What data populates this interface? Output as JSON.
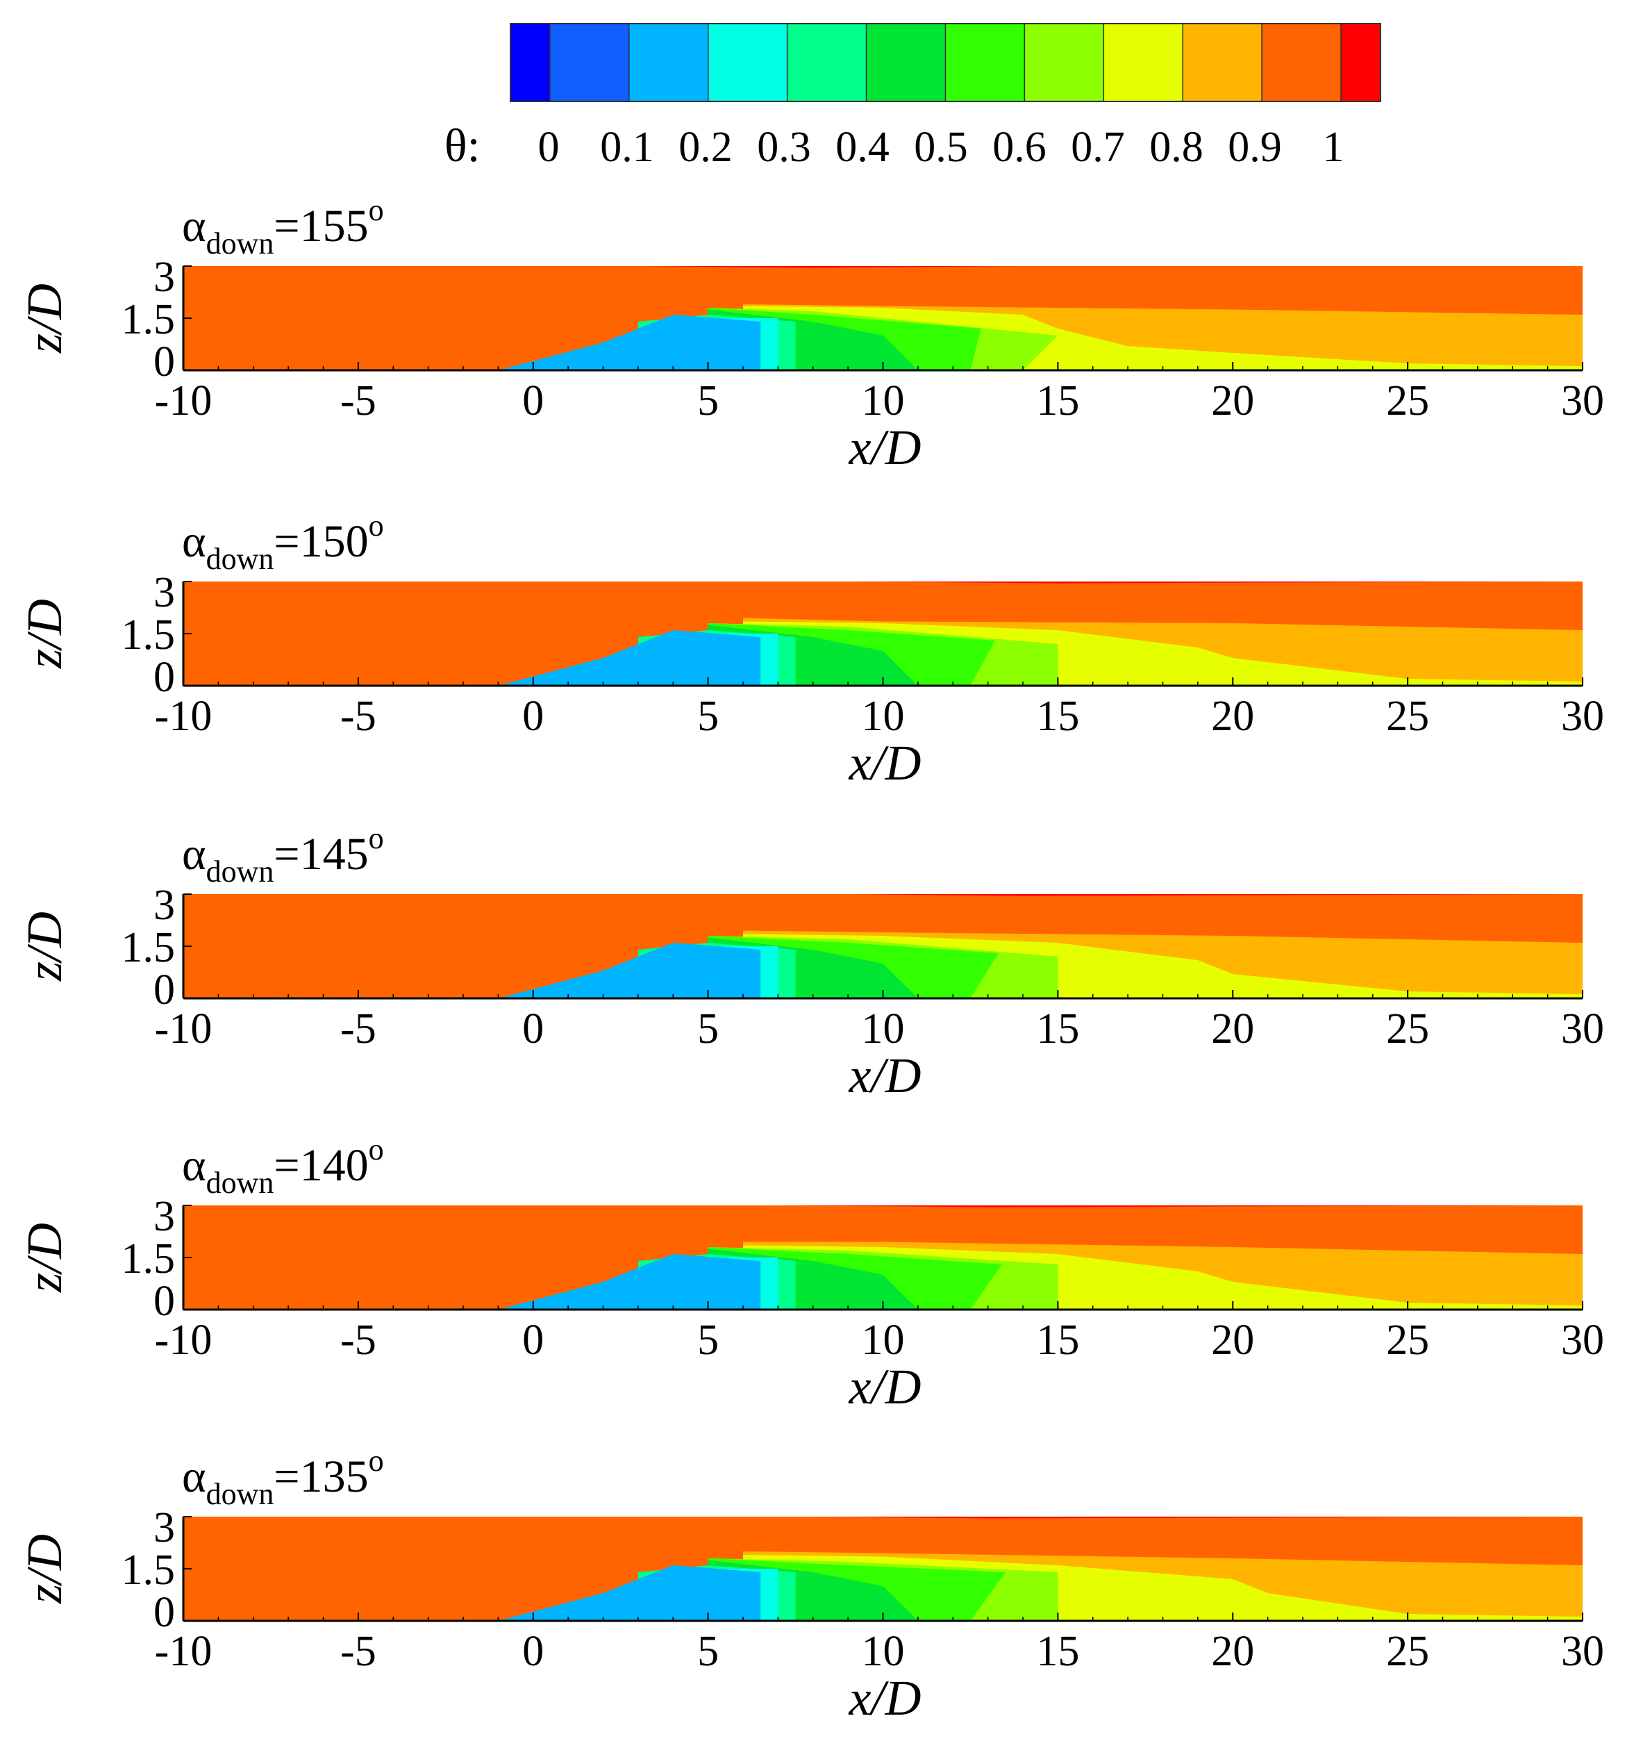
{
  "colorbar": {
    "variable_label": "θ:",
    "tick_labels": [
      "0",
      "0.1",
      "0.2",
      "0.3",
      "0.4",
      "0.5",
      "0.6",
      "0.7",
      "0.8",
      "0.9",
      "1"
    ],
    "levels": [
      {
        "upper": 0.0,
        "color": "#0000ff"
      },
      {
        "upper": 0.1,
        "color": "#0f5fff"
      },
      {
        "upper": 0.2,
        "color": "#00b4ff"
      },
      {
        "upper": 0.3,
        "color": "#00ffe6"
      },
      {
        "upper": 0.4,
        "color": "#00ff8c"
      },
      {
        "upper": 0.5,
        "color": "#00e632"
      },
      {
        "upper": 0.6,
        "color": "#32ff00"
      },
      {
        "upper": 0.7,
        "color": "#8cff00"
      },
      {
        "upper": 0.8,
        "color": "#e6ff00"
      },
      {
        "upper": 0.9,
        "color": "#ffb400"
      },
      {
        "upper": 0.95,
        "color": "#ff6400"
      },
      {
        "upper": 1.0,
        "color": "#ff0000"
      }
    ]
  },
  "chart_data": [
    {
      "type": "heatmap",
      "title_symbol": "α",
      "title_subscript": "down",
      "title_value": "=155",
      "title_superscript": "o",
      "xlabel": "x/D",
      "ylabel": "z/D",
      "xlim": [
        -10,
        30
      ],
      "ylim": [
        0,
        3
      ],
      "xticks": [
        "-10",
        "-5",
        "0",
        "5",
        "10",
        "15",
        "20",
        "25",
        "30"
      ],
      "yticks": [
        "0",
        "1.5",
        "3"
      ],
      "theta_regions_upper_boundary_zD": [
        {
          "theta": 0.95,
          "x": [
            -10,
            3,
            8,
            14,
            20,
            30
          ],
          "z": [
            3.0,
            3.0,
            2.95,
            3.0,
            3.0,
            3.0
          ]
        },
        {
          "theta": 0.85,
          "x": [
            6,
            10,
            20,
            30
          ],
          "z": [
            1.9,
            1.85,
            1.75,
            1.6
          ]
        },
        {
          "theta": 0.75,
          "x": [
            6,
            10,
            14,
            15,
            17,
            20,
            25,
            30
          ],
          "z": [
            1.85,
            1.8,
            1.6,
            1.2,
            0.7,
            0.5,
            0.2,
            0.12
          ]
        },
        {
          "theta": 0.65,
          "x": [
            5,
            8,
            12,
            15,
            14
          ],
          "z": [
            1.8,
            1.7,
            1.3,
            1.0,
            0.0
          ]
        },
        {
          "theta": 0.55,
          "x": [
            5,
            8,
            12.8,
            12.5
          ],
          "z": [
            1.8,
            1.6,
            1.2,
            0.0
          ]
        },
        {
          "theta": 0.45,
          "x": [
            5,
            8,
            10,
            11
          ],
          "z": [
            1.75,
            1.4,
            1.0,
            0.0
          ]
        },
        {
          "theta": 0.35,
          "x": [
            3,
            5,
            7.5
          ],
          "z": [
            1.4,
            1.6,
            1.4
          ]
        },
        {
          "theta": 0.25,
          "x": [
            3.5,
            5,
            7
          ],
          "z": [
            1.3,
            1.5,
            1.5
          ]
        },
        {
          "theta": 0.15,
          "x": [
            -1,
            2,
            4,
            6.5
          ],
          "z": [
            0.0,
            0.8,
            1.6,
            1.4
          ]
        }
      ]
    },
    {
      "type": "heatmap",
      "title_symbol": "α",
      "title_subscript": "down",
      "title_value": "=150",
      "title_superscript": "o",
      "xlabel": "x/D",
      "ylabel": "z/D",
      "xlim": [
        -10,
        30
      ],
      "ylim": [
        0,
        3
      ],
      "xticks": [
        "-10",
        "-5",
        "0",
        "5",
        "10",
        "15",
        "20",
        "25",
        "30"
      ],
      "yticks": [
        "0",
        "1.5",
        "3"
      ],
      "theta_regions_upper_boundary_zD": [
        {
          "theta": 0.95,
          "x": [
            -10,
            9,
            15,
            30
          ],
          "z": [
            3.0,
            3.0,
            2.95,
            3.0
          ]
        },
        {
          "theta": 0.85,
          "x": [
            6,
            10,
            20,
            30
          ],
          "z": [
            1.95,
            1.85,
            1.8,
            1.6
          ]
        },
        {
          "theta": 0.75,
          "x": [
            6,
            10,
            15,
            19,
            20,
            25,
            30
          ],
          "z": [
            1.85,
            1.8,
            1.6,
            1.1,
            0.8,
            0.2,
            0.12
          ]
        },
        {
          "theta": 0.65,
          "x": [
            5,
            9,
            15,
            15
          ],
          "z": [
            1.8,
            1.7,
            1.2,
            0.0
          ]
        },
        {
          "theta": 0.55,
          "x": [
            5,
            9,
            13.2,
            12.5
          ],
          "z": [
            1.8,
            1.6,
            1.3,
            0.0
          ]
        },
        {
          "theta": 0.45,
          "x": [
            5,
            8,
            10,
            11
          ],
          "z": [
            1.75,
            1.4,
            1.0,
            0.0
          ]
        },
        {
          "theta": 0.35,
          "x": [
            3,
            5,
            7.5
          ],
          "z": [
            1.4,
            1.6,
            1.4
          ]
        },
        {
          "theta": 0.25,
          "x": [
            3.5,
            5,
            7
          ],
          "z": [
            1.3,
            1.5,
            1.5
          ]
        },
        {
          "theta": 0.15,
          "x": [
            -1,
            2,
            4,
            6.5
          ],
          "z": [
            0.0,
            0.8,
            1.6,
            1.4
          ]
        }
      ]
    },
    {
      "type": "heatmap",
      "title_symbol": "α",
      "title_subscript": "down",
      "title_value": "=145",
      "title_superscript": "o",
      "xlabel": "x/D",
      "ylabel": "z/D",
      "xlim": [
        -10,
        30
      ],
      "ylim": [
        0,
        3
      ],
      "xticks": [
        "-10",
        "-5",
        "0",
        "5",
        "10",
        "15",
        "20",
        "25",
        "30"
      ],
      "yticks": [
        "0",
        "1.5",
        "3"
      ],
      "theta_regions_upper_boundary_zD": [
        {
          "theta": 0.95,
          "x": [
            -10,
            9,
            14,
            30
          ],
          "z": [
            3.0,
            3.0,
            2.95,
            3.0
          ]
        },
        {
          "theta": 0.85,
          "x": [
            6,
            10,
            20,
            30
          ],
          "z": [
            1.95,
            1.9,
            1.8,
            1.6
          ]
        },
        {
          "theta": 0.75,
          "x": [
            6,
            10,
            15,
            19,
            20,
            25,
            30
          ],
          "z": [
            1.85,
            1.8,
            1.6,
            1.1,
            0.7,
            0.2,
            0.12
          ]
        },
        {
          "theta": 0.65,
          "x": [
            5,
            9,
            15,
            15
          ],
          "z": [
            1.8,
            1.7,
            1.2,
            0.0
          ]
        },
        {
          "theta": 0.55,
          "x": [
            5,
            9,
            13.3,
            12.5
          ],
          "z": [
            1.8,
            1.6,
            1.3,
            0.0
          ]
        },
        {
          "theta": 0.45,
          "x": [
            5,
            8,
            10,
            11
          ],
          "z": [
            1.75,
            1.4,
            1.0,
            0.0
          ]
        },
        {
          "theta": 0.35,
          "x": [
            3,
            5,
            7.5
          ],
          "z": [
            1.4,
            1.6,
            1.4
          ]
        },
        {
          "theta": 0.25,
          "x": [
            3.5,
            5,
            7
          ],
          "z": [
            1.3,
            1.5,
            1.5
          ]
        },
        {
          "theta": 0.15,
          "x": [
            -1,
            2,
            4,
            6.5
          ],
          "z": [
            0.0,
            0.8,
            1.6,
            1.4
          ]
        }
      ]
    },
    {
      "type": "heatmap",
      "title_symbol": "α",
      "title_subscript": "down",
      "title_value": "=140",
      "title_superscript": "o",
      "xlabel": "x/D",
      "ylabel": "z/D",
      "xlim": [
        -10,
        30
      ],
      "ylim": [
        0,
        3
      ],
      "xticks": [
        "-10",
        "-5",
        "0",
        "5",
        "10",
        "15",
        "20",
        "25",
        "30"
      ],
      "yticks": [
        "0",
        "1.5",
        "3"
      ],
      "theta_regions_upper_boundary_zD": [
        {
          "theta": 0.95,
          "x": [
            -10,
            7,
            13,
            30
          ],
          "z": [
            3.0,
            3.0,
            2.95,
            3.0
          ]
        },
        {
          "theta": 0.85,
          "x": [
            6,
            10,
            20,
            30
          ],
          "z": [
            1.95,
            1.95,
            1.8,
            1.6
          ]
        },
        {
          "theta": 0.75,
          "x": [
            6,
            10,
            15,
            19,
            20,
            25,
            30
          ],
          "z": [
            1.85,
            1.8,
            1.6,
            1.1,
            0.8,
            0.2,
            0.12
          ]
        },
        {
          "theta": 0.65,
          "x": [
            5,
            9,
            15,
            15
          ],
          "z": [
            1.8,
            1.7,
            1.3,
            0.0
          ]
        },
        {
          "theta": 0.55,
          "x": [
            5,
            9,
            13.4,
            12.5
          ],
          "z": [
            1.8,
            1.6,
            1.3,
            0.0
          ]
        },
        {
          "theta": 0.45,
          "x": [
            5,
            8,
            10,
            11
          ],
          "z": [
            1.75,
            1.4,
            1.0,
            0.0
          ]
        },
        {
          "theta": 0.35,
          "x": [
            3,
            5,
            7.5
          ],
          "z": [
            1.4,
            1.6,
            1.4
          ]
        },
        {
          "theta": 0.25,
          "x": [
            3.5,
            5,
            7
          ],
          "z": [
            1.3,
            1.5,
            1.5
          ]
        },
        {
          "theta": 0.15,
          "x": [
            -1,
            2,
            4,
            6.5
          ],
          "z": [
            0.0,
            0.8,
            1.6,
            1.4
          ]
        }
      ]
    },
    {
      "type": "heatmap",
      "title_symbol": "α",
      "title_subscript": "down",
      "title_value": "=135",
      "title_superscript": "o",
      "xlabel": "x/D",
      "ylabel": "z/D",
      "xlim": [
        -10,
        30
      ],
      "ylim": [
        0,
        3
      ],
      "xticks": [
        "-10",
        "-5",
        "0",
        "5",
        "10",
        "15",
        "20",
        "25",
        "30"
      ],
      "yticks": [
        "0",
        "1.5",
        "3"
      ],
      "theta_regions_upper_boundary_zD": [
        {
          "theta": 0.95,
          "x": [
            -10,
            8,
            13,
            30
          ],
          "z": [
            3.0,
            3.0,
            2.95,
            3.0
          ]
        },
        {
          "theta": 0.85,
          "x": [
            6,
            10,
            20,
            30
          ],
          "z": [
            2.0,
            1.95,
            1.8,
            1.6
          ]
        },
        {
          "theta": 0.75,
          "x": [
            6,
            10,
            15,
            20,
            21,
            25,
            30
          ],
          "z": [
            1.9,
            1.85,
            1.6,
            1.2,
            0.8,
            0.2,
            0.12
          ]
        },
        {
          "theta": 0.65,
          "x": [
            5,
            9,
            15,
            15
          ],
          "z": [
            1.8,
            1.7,
            1.4,
            0.0
          ]
        },
        {
          "theta": 0.55,
          "x": [
            5,
            9,
            13.5,
            12.5
          ],
          "z": [
            1.8,
            1.6,
            1.4,
            0.0
          ]
        },
        {
          "theta": 0.45,
          "x": [
            5,
            8,
            10,
            11
          ],
          "z": [
            1.75,
            1.4,
            1.0,
            0.0
          ]
        },
        {
          "theta": 0.35,
          "x": [
            3,
            5,
            7.5
          ],
          "z": [
            1.4,
            1.6,
            1.4
          ]
        },
        {
          "theta": 0.25,
          "x": [
            3.5,
            5,
            7
          ],
          "z": [
            1.3,
            1.5,
            1.5
          ]
        },
        {
          "theta": 0.15,
          "x": [
            -1,
            2,
            4,
            6.5
          ],
          "z": [
            0.0,
            0.8,
            1.6,
            1.4
          ]
        }
      ]
    }
  ]
}
